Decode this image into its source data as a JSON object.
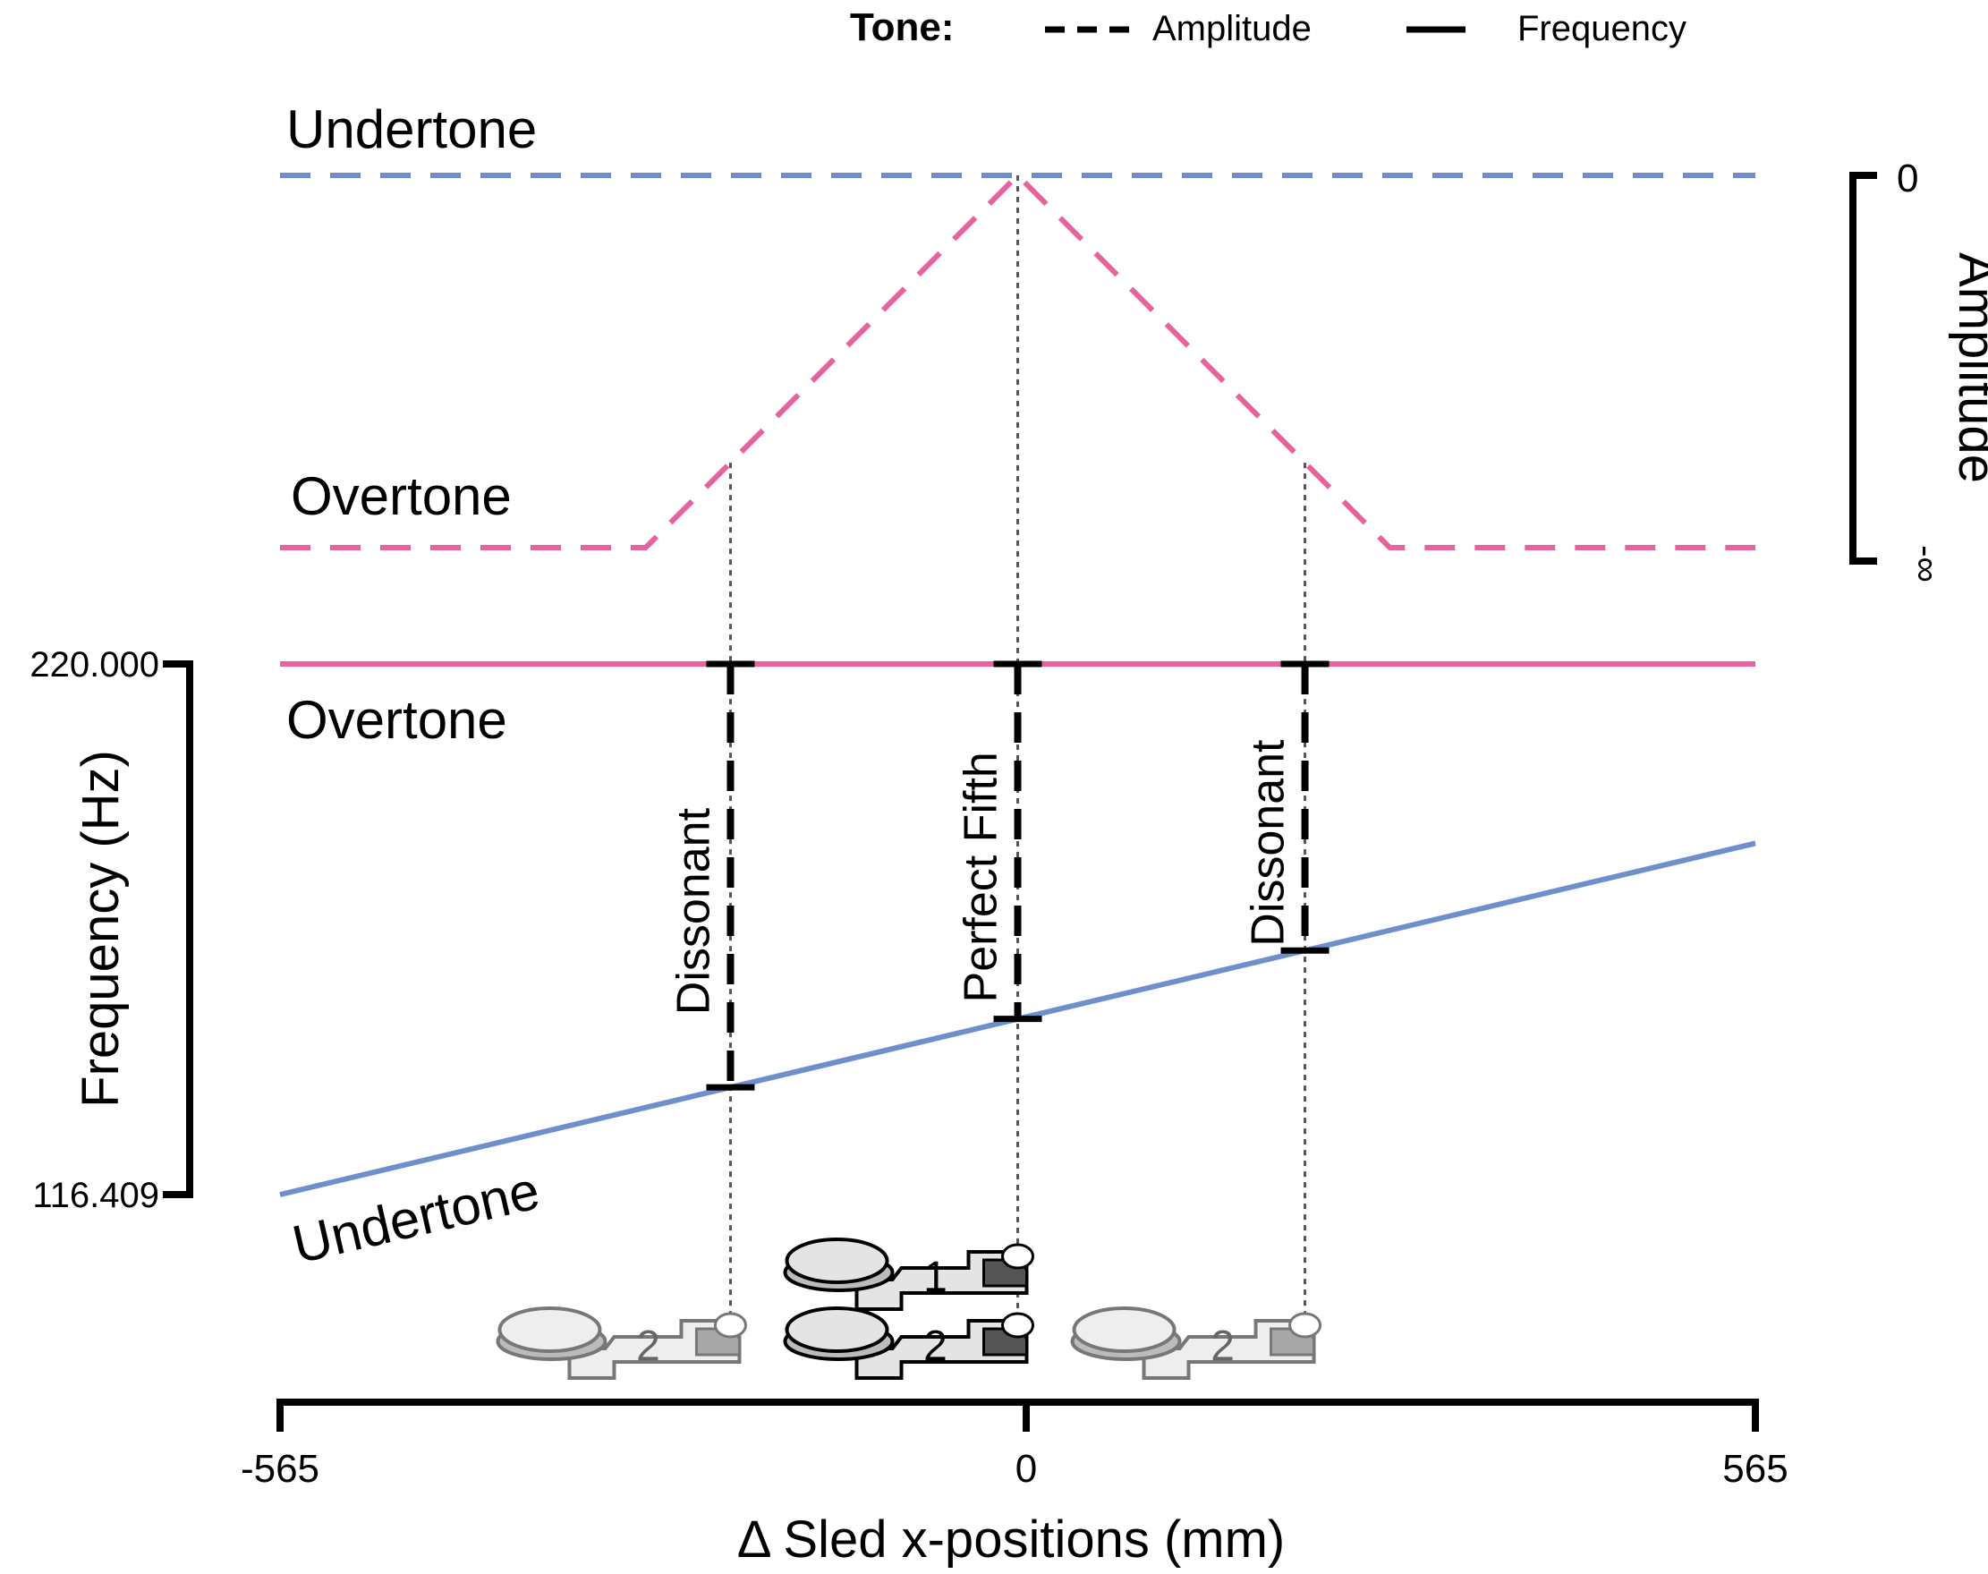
{
  "chart_data": {
    "type": "line",
    "xlabel": "Δ Sled x-positions (mm)",
    "xlim": [
      -565,
      565
    ],
    "x_ticks": [
      "-565",
      "0",
      "565"
    ],
    "legend": {
      "title": "Tone:",
      "entries": [
        {
          "label": "Amplitude",
          "style": "dashed"
        },
        {
          "label": "Frequency",
          "style": "solid"
        }
      ],
      "placement": "top-right"
    },
    "amplitude_axis": {
      "label": "Amplitude",
      "ticks": [
        "0",
        "-∞"
      ],
      "scale": "relative level, 0 at top to -∞ at bottom"
    },
    "frequency_axis": {
      "label": "Frequency (Hz)",
      "ticks": [
        "220.000",
        "116.409"
      ],
      "ylim": [
        116.409,
        220.0
      ]
    },
    "series": [
      {
        "name": "Undertone",
        "panel": "amplitude",
        "style": "dashed",
        "color": "#6e8fcc",
        "x": [
          -565,
          565
        ],
        "y": [
          1.0,
          1.0
        ]
      },
      {
        "name": "Overtone",
        "panel": "amplitude",
        "style": "dashed",
        "color": "#e8629f",
        "x": [
          -565,
          -285,
          0,
          285,
          565
        ],
        "y": [
          0.0,
          0.0,
          1.0,
          0.0,
          0.0
        ]
      },
      {
        "name": "Overtone",
        "panel": "frequency",
        "style": "solid",
        "color": "#e8629f",
        "x": [
          -565,
          565
        ],
        "y": [
          220.0,
          220.0
        ]
      },
      {
        "name": "Undertone",
        "panel": "frequency",
        "style": "solid",
        "color": "#6e8fcc",
        "x": [
          -565,
          565
        ],
        "y": [
          116.409,
          185.0
        ]
      }
    ],
    "markers": [
      {
        "x": -220,
        "label": "Dissonant"
      },
      {
        "x": 0,
        "label": "Perfect Fifth"
      },
      {
        "x": 220,
        "label": "Dissonant"
      }
    ],
    "sled_labels": {
      "top": "1",
      "bottom": [
        "2",
        "2",
        "2"
      ]
    },
    "colors": {
      "undertone": "#6e8fcc",
      "overtone": "#e8629f",
      "axis": "#000000",
      "guide": "#555555"
    }
  }
}
